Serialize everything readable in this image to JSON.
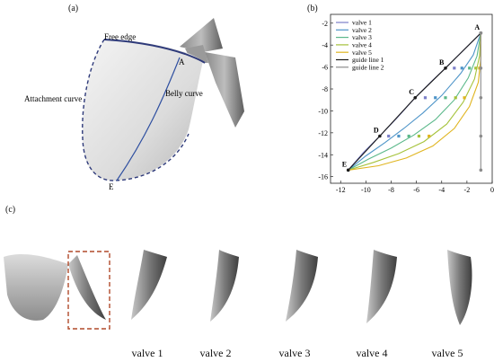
{
  "figure": {
    "panel_a": {
      "label": "(a)",
      "annotations": {
        "free_edge": "Free edge",
        "attachment_curve": "Attachment curve",
        "belly_curve": "Belly curve",
        "point_a": "A",
        "point_e": "E"
      }
    },
    "panel_b": {
      "label": "(b)"
    },
    "panel_c": {
      "label": "(c)",
      "valve_captions": [
        "valve 1",
        "valve 2",
        "valve 3",
        "valve 4",
        "valve 5"
      ]
    }
  },
  "chart_data": {
    "type": "line",
    "title": "",
    "xlabel": "",
    "ylabel": "",
    "xlim": [
      -12.8,
      0
    ],
    "ylim": [
      -16.6,
      -1.2
    ],
    "xticks": [
      -12,
      -10,
      -8,
      -6,
      -4,
      -2,
      0
    ],
    "yticks": [
      -2,
      -4,
      -6,
      -8,
      -10,
      -12,
      -14,
      -16
    ],
    "grid": false,
    "legend_position": "top-left",
    "point_labels": [
      {
        "text": "A",
        "x": -0.9,
        "y": -2.9
      },
      {
        "text": "B",
        "x": -3.7,
        "y": -6.1
      },
      {
        "text": "C",
        "x": -6.1,
        "y": -8.8
      },
      {
        "text": "D",
        "x": -8.9,
        "y": -12.3
      },
      {
        "text": "E",
        "x": -11.4,
        "y": -15.4
      }
    ],
    "series": [
      {
        "name": "valve 1",
        "color": "#7b7fc8",
        "marker": "square",
        "points": [
          [
            -11.4,
            -15.4
          ],
          [
            -10.2,
            -13.8
          ],
          [
            -8.9,
            -12.3
          ],
          [
            -7.5,
            -10.6
          ],
          [
            -6.1,
            -8.8
          ],
          [
            -4.8,
            -7.3
          ],
          [
            -3.7,
            -6.1
          ],
          [
            -2.3,
            -4.5
          ],
          [
            -0.9,
            -2.9
          ]
        ],
        "marked": [
          [
            -8.2,
            -12.3
          ],
          [
            -5.3,
            -8.8
          ],
          [
            -3.0,
            -6.1
          ]
        ]
      },
      {
        "name": "valve 2",
        "color": "#4d94c8",
        "marker": "square",
        "points": [
          [
            -11.4,
            -15.4
          ],
          [
            -10.0,
            -14.1
          ],
          [
            -8.5,
            -12.9
          ],
          [
            -7.0,
            -11.6
          ],
          [
            -5.5,
            -10.2
          ],
          [
            -4.0,
            -8.6
          ],
          [
            -2.5,
            -6.6
          ],
          [
            -1.5,
            -4.9
          ],
          [
            -0.9,
            -2.9
          ]
        ],
        "marked": [
          [
            -7.4,
            -12.3
          ],
          [
            -4.5,
            -8.8
          ],
          [
            -2.4,
            -6.1
          ]
        ]
      },
      {
        "name": "valve 3",
        "color": "#5bb88a",
        "marker": "square",
        "points": [
          [
            -11.4,
            -15.4
          ],
          [
            -9.8,
            -14.4
          ],
          [
            -8.0,
            -13.4
          ],
          [
            -6.2,
            -12.2
          ],
          [
            -4.5,
            -10.8
          ],
          [
            -3.0,
            -9.0
          ],
          [
            -1.9,
            -7.0
          ],
          [
            -1.2,
            -5.0
          ],
          [
            -0.9,
            -2.9
          ]
        ],
        "marked": [
          [
            -6.6,
            -12.3
          ],
          [
            -3.7,
            -8.8
          ],
          [
            -1.8,
            -6.1
          ]
        ]
      },
      {
        "name": "valve 4",
        "color": "#a5c23a",
        "marker": "square",
        "points": [
          [
            -11.4,
            -15.4
          ],
          [
            -9.4,
            -14.7
          ],
          [
            -7.4,
            -13.9
          ],
          [
            -5.4,
            -12.8
          ],
          [
            -3.6,
            -11.2
          ],
          [
            -2.3,
            -9.2
          ],
          [
            -1.4,
            -7.1
          ],
          [
            -1.0,
            -5.0
          ],
          [
            -0.9,
            -2.9
          ]
        ],
        "marked": [
          [
            -5.8,
            -12.3
          ],
          [
            -2.9,
            -8.8
          ],
          [
            -1.3,
            -6.1
          ]
        ]
      },
      {
        "name": "valve 5",
        "color": "#e0b520",
        "marker": "square",
        "points": [
          [
            -11.4,
            -15.4
          ],
          [
            -9.0,
            -15.0
          ],
          [
            -6.8,
            -14.3
          ],
          [
            -4.7,
            -13.2
          ],
          [
            -3.0,
            -11.6
          ],
          [
            -1.8,
            -9.6
          ],
          [
            -1.1,
            -7.4
          ],
          [
            -0.9,
            -5.2
          ],
          [
            -0.9,
            -2.9
          ]
        ],
        "marked": [
          [
            -5.0,
            -12.3
          ],
          [
            -2.2,
            -8.8
          ],
          [
            -1.0,
            -6.1
          ]
        ]
      },
      {
        "name": "guide line 1",
        "color": "#1a1a1a",
        "marker": "circle",
        "points": [
          [
            -11.4,
            -15.4
          ],
          [
            -8.9,
            -12.3
          ],
          [
            -6.1,
            -8.8
          ],
          [
            -3.7,
            -6.1
          ],
          [
            -0.9,
            -2.9
          ]
        ],
        "marked": [
          [
            -11.4,
            -15.4
          ],
          [
            -8.9,
            -12.3
          ],
          [
            -6.1,
            -8.8
          ],
          [
            -3.7,
            -6.1
          ],
          [
            -0.9,
            -2.9
          ]
        ]
      },
      {
        "name": "guide line 2",
        "color": "#8c8c8c",
        "marker": "circle",
        "points": [
          [
            -0.9,
            -2.9
          ],
          [
            -0.9,
            -15.4
          ]
        ],
        "marked": [
          [
            -0.9,
            -2.9
          ],
          [
            -0.9,
            -6.1
          ],
          [
            -0.9,
            -8.8
          ],
          [
            -0.9,
            -12.3
          ],
          [
            -0.9,
            -15.4
          ]
        ]
      }
    ]
  }
}
